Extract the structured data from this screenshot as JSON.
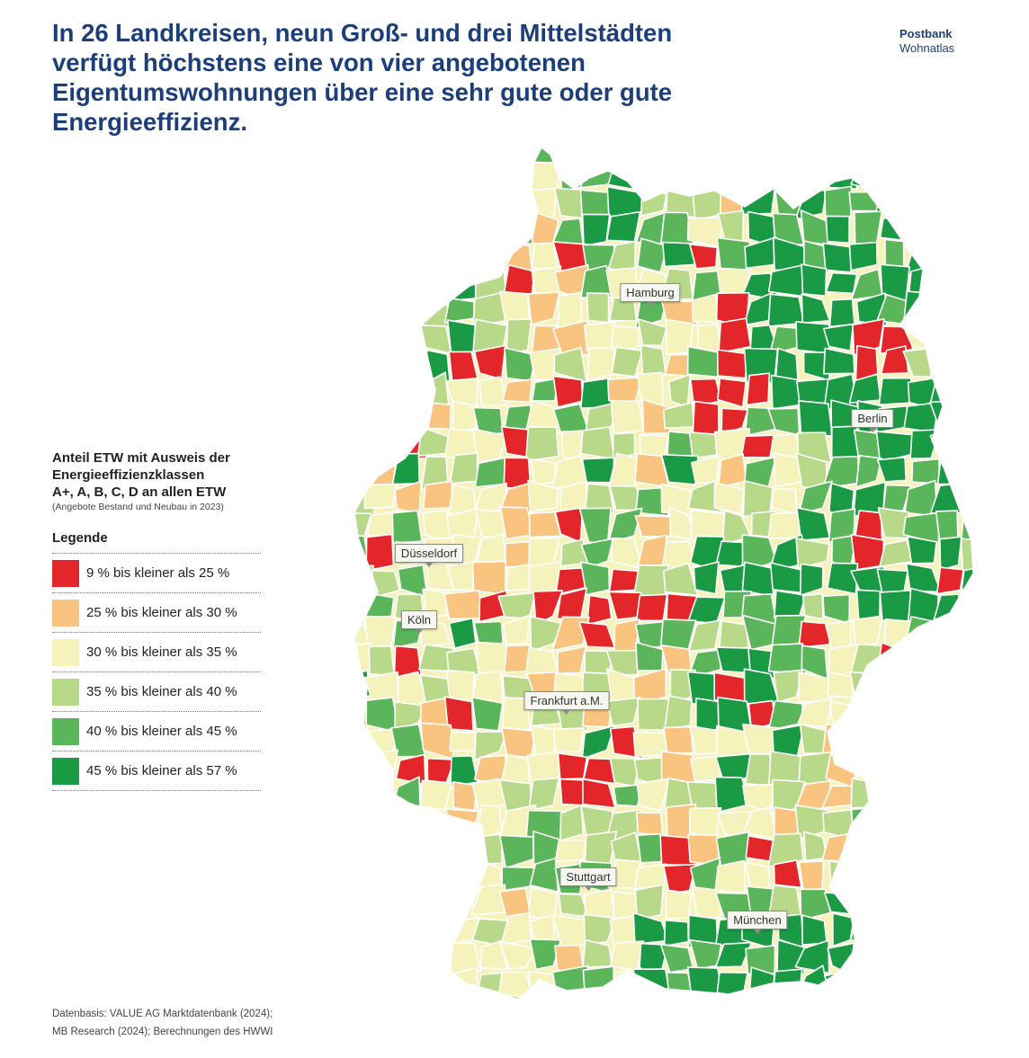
{
  "headline": "In 26 Landkreisen, neun Groß- und drei Mittelstädten verfügt höchstens eine von vier angebotenen Eigentumswohnungen über eine sehr gute oder gute Energieeffizienz.",
  "brand": {
    "name": "Postbank",
    "product": "Wohnatlas"
  },
  "legend": {
    "title_line1": "Anteil ETW mit Ausweis der",
    "title_line2": "Energieeffizienzklassen",
    "title_line3": "A+, A, B, C, D an allen ETW",
    "subtitle": "(Angebote Bestand und Neubau in 2023)",
    "heading": "Legende",
    "items": [
      {
        "label": "9 % bis kleiner als 25 %",
        "color": "#e3262a"
      },
      {
        "label": "25 % bis kleiner als 30 %",
        "color": "#f8c47f"
      },
      {
        "label": "30 % bis kleiner als 35 %",
        "color": "#f5f2bc"
      },
      {
        "label": "35 % bis kleiner als 40 %",
        "color": "#b9d98a"
      },
      {
        "label": "40 % bis kleiner als 45 %",
        "color": "#5bb55a"
      },
      {
        "label": "45 % bis kleiner als 57 %",
        "color": "#1a9a44"
      }
    ]
  },
  "cities": {
    "hamburg": "Hamburg",
    "berlin": "Berlin",
    "duesseldorf": "Düsseldorf",
    "koeln": "Köln",
    "frankfurt": "Frankfurt a.M.",
    "stuttgart": "Stuttgart",
    "muenchen": "München"
  },
  "source": {
    "line1": "Datenbasis: VALUE AG Marktdatenbank (2024);",
    "line2": "MB Research (2024); Berechnungen des HWWI"
  }
}
